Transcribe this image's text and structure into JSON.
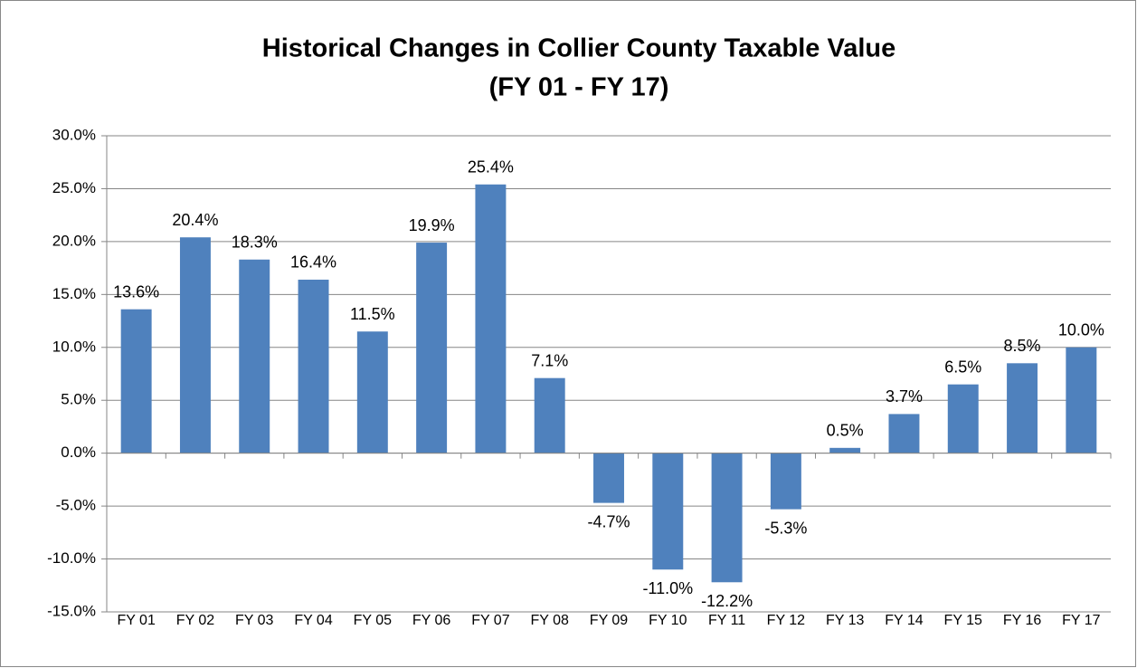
{
  "chart_data": {
    "type": "bar",
    "title": "Historical Changes in Collier County Taxable Value",
    "subtitle": "(FY 01 - FY 17)",
    "categories": [
      "FY 01",
      "FY 02",
      "FY 03",
      "FY 04",
      "FY 05",
      "FY 06",
      "FY 07",
      "FY 08",
      "FY 09",
      "FY 10",
      "FY 11",
      "FY 12",
      "FY 13",
      "FY 14",
      "FY 15",
      "FY 16",
      "FY 17"
    ],
    "values": [
      13.6,
      20.4,
      18.3,
      16.4,
      11.5,
      19.9,
      25.4,
      7.1,
      -4.7,
      -11.0,
      -12.2,
      -5.3,
      0.5,
      3.7,
      6.5,
      8.5,
      10.0
    ],
    "value_labels": [
      "13.6%",
      "20.4%",
      "18.3%",
      "16.4%",
      "11.5%",
      "19.9%",
      "25.4%",
      "7.1%",
      "-4.7%",
      "-11.0%",
      "-12.2%",
      "-5.3%",
      "0.5%",
      "3.7%",
      "6.5%",
      "8.5%",
      "10.0%"
    ],
    "color": "#4f81bd",
    "ylim": [
      -15,
      30
    ],
    "yticks": [
      {
        "value": -15,
        "label": "-15.0%"
      },
      {
        "value": -10,
        "label": "-10.0%"
      },
      {
        "value": -5,
        "label": "-5.0%"
      },
      {
        "value": 0,
        "label": "0.0%"
      },
      {
        "value": 5,
        "label": "5.0%"
      },
      {
        "value": 10,
        "label": "10.0%"
      },
      {
        "value": 15,
        "label": "15.0%"
      },
      {
        "value": 20,
        "label": "20.0%"
      },
      {
        "value": 25,
        "label": "25.0%"
      },
      {
        "value": 30,
        "label": "30.0%"
      }
    ],
    "grid": true
  }
}
